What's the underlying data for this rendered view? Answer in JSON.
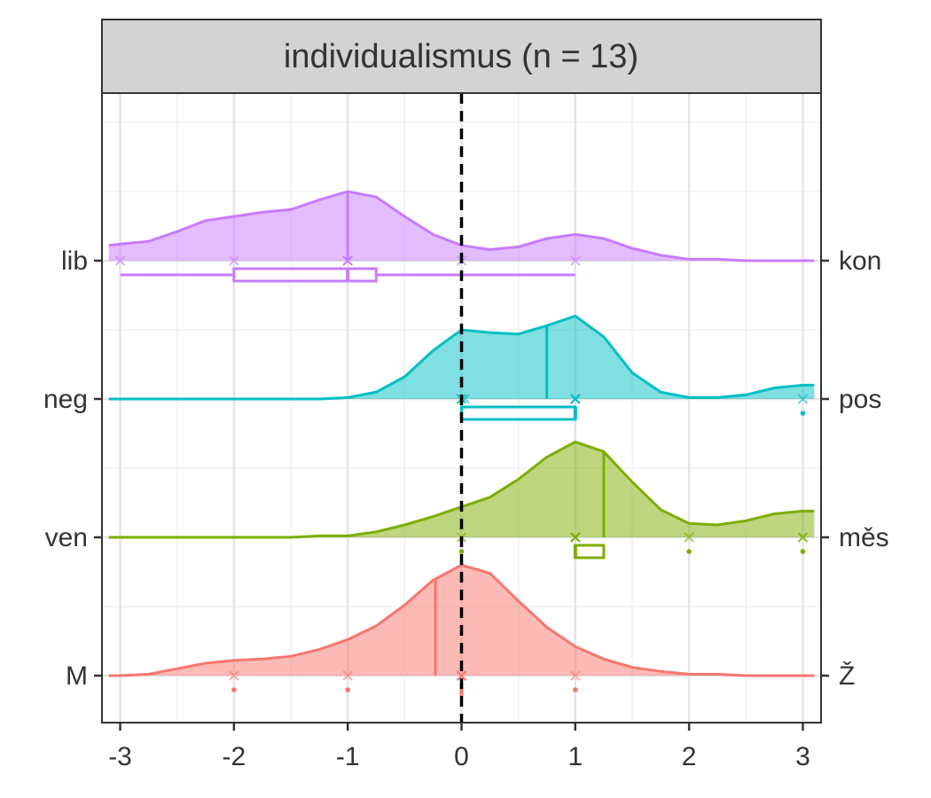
{
  "chart_data": {
    "type": "ridgeline",
    "title": "individualismus (n = 13)",
    "xlim": [
      -3.16,
      3.16
    ],
    "xticks": [
      -3,
      -2,
      -1,
      0,
      1,
      2,
      3
    ],
    "grid": true,
    "vline": 0,
    "density_x": [
      -3.1,
      -3,
      -2.75,
      -2.5,
      -2.25,
      -2,
      -1.75,
      -1.5,
      -1.25,
      -1,
      -0.75,
      -0.5,
      -0.25,
      0,
      0.25,
      0.5,
      0.75,
      1,
      1.25,
      1.5,
      1.75,
      2,
      2.25,
      2.5,
      2.75,
      3,
      3.1
    ],
    "series": [
      {
        "name": "M",
        "name_right": "Ž",
        "color": "#F8766D",
        "density": [
          0,
          0,
          0.01,
          0.05,
          0.09,
          0.11,
          0.12,
          0.14,
          0.19,
          0.26,
          0.36,
          0.51,
          0.69,
          0.8,
          0.74,
          0.54,
          0.35,
          0.21,
          0.12,
          0.06,
          0.03,
          0.01,
          0.01,
          0,
          0,
          0,
          0
        ],
        "median": -0.23,
        "points": [
          -2,
          -1,
          0,
          0,
          0,
          0,
          1
        ],
        "box": {
          "whisker_low": 0,
          "q1": 0,
          "median": 0,
          "q3": 0,
          "whisker_high": 0
        },
        "outliers": [
          -2,
          -1,
          1
        ]
      },
      {
        "name": "ven",
        "name_right": "měs",
        "color": "#7CAE00",
        "density": [
          0,
          0,
          0,
          0,
          0,
          0,
          0,
          0,
          0.01,
          0.01,
          0.04,
          0.09,
          0.15,
          0.22,
          0.29,
          0.42,
          0.58,
          0.69,
          0.62,
          0.4,
          0.2,
          0.1,
          0.09,
          0.12,
          0.17,
          0.19,
          0.19
        ],
        "median": 1.25,
        "points": [
          0,
          1,
          1,
          1,
          1,
          2,
          3,
          3
        ],
        "box": {
          "whisker_low": 1,
          "q1": 1,
          "median": 1,
          "q3": 1.25,
          "whisker_high": 1.25
        },
        "outliers": [
          0,
          2,
          3
        ]
      },
      {
        "name": "neg",
        "name_right": "pos",
        "color": "#00BFC4",
        "density": [
          0,
          0,
          0,
          0,
          0,
          0,
          0,
          0,
          0,
          0.01,
          0.05,
          0.16,
          0.35,
          0.5,
          0.48,
          0.47,
          0.53,
          0.6,
          0.45,
          0.19,
          0.05,
          0.01,
          0.01,
          0.03,
          0.08,
          0.1,
          0.1
        ],
        "median": 0.75,
        "points": [
          0,
          0,
          0.03,
          1,
          1,
          1,
          1,
          3
        ],
        "box": {
          "whisker_low": 0,
          "q1": 0,
          "median": 1,
          "q3": 1,
          "whisker_high": 1
        },
        "outliers": [
          3
        ]
      },
      {
        "name": "lib",
        "name_right": "kon",
        "color": "#C77CFF",
        "density": [
          0.11,
          0.12,
          0.14,
          0.21,
          0.29,
          0.32,
          0.35,
          0.37,
          0.44,
          0.5,
          0.46,
          0.32,
          0.19,
          0.11,
          0.08,
          0.1,
          0.16,
          0.19,
          0.16,
          0.09,
          0.04,
          0.01,
          0.01,
          0,
          0,
          0,
          0
        ],
        "median": -1,
        "points": [
          -3,
          -2,
          -1,
          -1,
          -1,
          -1,
          0,
          1
        ],
        "box": {
          "whisker_low": -3,
          "q1": -2,
          "median": -1,
          "q3": -0.75,
          "whisker_high": 1
        },
        "outliers": []
      }
    ]
  }
}
